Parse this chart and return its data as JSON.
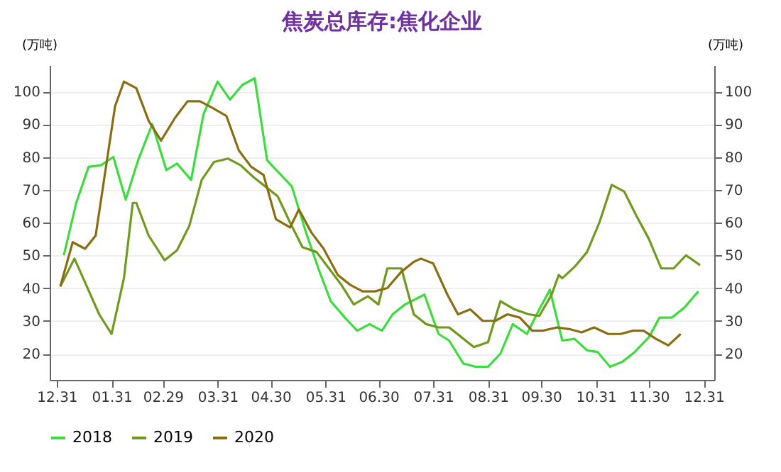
{
  "chart_data": {
    "type": "line",
    "title": "焦炭总库存:焦化企业",
    "ylabel": "(万吨)",
    "y2label": "(万吨)",
    "xlim": [
      "2019-12-27",
      "2021-01-06"
    ],
    "xticks": [
      {
        "value": "2019-12-31",
        "label": "12.31"
      },
      {
        "value": "2020-01-31",
        "label": "01.31"
      },
      {
        "value": "2020-02-29",
        "label": "02.29"
      },
      {
        "value": "2020-03-31",
        "label": "03.31"
      },
      {
        "value": "2020-04-30",
        "label": "04.30"
      },
      {
        "value": "2020-05-31",
        "label": "05.31"
      },
      {
        "value": "2020-06-30",
        "label": "06.30"
      },
      {
        "value": "2020-07-31",
        "label": "07.31"
      },
      {
        "value": "2020-08-31",
        "label": "08.31"
      },
      {
        "value": "2020-09-30",
        "label": "09.30"
      },
      {
        "value": "2020-10-31",
        "label": "10.31"
      },
      {
        "value": "2020-11-30",
        "label": "11.30"
      },
      {
        "value": "2020-12-31",
        "label": "12.31"
      }
    ],
    "ylim": [
      12,
      108
    ],
    "yticks": [
      20,
      30,
      40,
      50,
      60,
      70,
      80,
      90,
      100
    ],
    "y2lim": [
      12,
      108
    ],
    "y2ticks": [
      20,
      30,
      40,
      50,
      60,
      70,
      80,
      90,
      100
    ],
    "grid": "y",
    "legend": "bottom",
    "line_style": "solid",
    "marker": "none",
    "series": [
      {
        "name": "2018",
        "color": "#3ddc3d",
        "x": [
          "2020-01-04",
          "2020-01-11",
          "2020-01-18",
          "2020-01-25",
          "2020-02-01",
          "2020-02-08",
          "2020-02-15",
          "2020-02-23",
          "2020-03-02",
          "2020-03-08",
          "2020-03-16",
          "2020-03-23",
          "2020-03-31",
          "2020-04-07",
          "2020-04-14",
          "2020-04-21",
          "2020-04-28",
          "2020-05-05",
          "2020-05-12",
          "2020-05-20",
          "2020-05-27",
          "2020-06-03",
          "2020-06-11",
          "2020-06-18",
          "2020-06-25",
          "2020-07-02",
          "2020-07-08",
          "2020-07-15",
          "2020-07-26",
          "2020-08-03",
          "2020-08-09",
          "2020-08-17",
          "2020-08-24",
          "2020-08-31",
          "2020-09-07",
          "2020-09-14",
          "2020-09-22",
          "2020-09-29",
          "2020-10-05",
          "2020-10-12",
          "2020-10-19",
          "2020-10-26",
          "2020-11-01",
          "2020-11-08",
          "2020-11-15",
          "2020-11-22",
          "2020-11-30",
          "2020-12-06",
          "2020-12-13",
          "2020-12-20",
          "2020-12-28"
        ],
        "values": [
          50,
          66,
          77,
          77.5,
          80,
          67,
          79,
          90,
          76,
          78,
          73,
          93,
          103,
          97.5,
          102,
          104,
          79,
          75,
          71,
          57,
          46,
          36,
          31,
          27,
          29,
          27,
          32,
          35,
          38,
          26,
          24,
          17,
          16,
          16,
          20,
          29,
          26,
          33.5,
          39.5,
          24,
          24.5,
          21,
          20.5,
          16,
          17.5,
          20.5,
          25,
          31,
          31,
          34,
          39
        ]
      },
      {
        "name": "2019",
        "color": "#6f9a1e",
        "x": [
          "2020-01-02",
          "2020-01-10",
          "2020-01-17",
          "2020-01-24",
          "2020-01-31",
          "2020-02-07",
          "2020-02-12",
          "2020-02-14",
          "2020-02-21",
          "2020-03-01",
          "2020-03-08",
          "2020-03-15",
          "2020-03-22",
          "2020-03-29",
          "2020-04-06",
          "2020-04-13",
          "2020-04-20",
          "2020-04-27",
          "2020-05-04",
          "2020-05-11",
          "2020-05-18",
          "2020-05-26",
          "2020-06-02",
          "2020-06-09",
          "2020-06-16",
          "2020-06-24",
          "2020-06-30",
          "2020-07-05",
          "2020-07-13",
          "2020-07-20",
          "2020-07-27",
          "2020-08-03",
          "2020-08-09",
          "2020-08-16",
          "2020-08-23",
          "2020-08-31",
          "2020-09-07",
          "2020-09-15",
          "2020-09-23",
          "2020-09-29",
          "2020-10-06",
          "2020-10-10",
          "2020-10-12",
          "2020-10-19",
          "2020-10-26",
          "2020-11-02",
          "2020-11-09",
          "2020-11-16",
          "2020-11-23",
          "2020-11-30",
          "2020-12-07",
          "2020-12-14",
          "2020-12-21",
          "2020-12-29"
        ],
        "values": [
          40.5,
          49,
          40.5,
          32,
          26,
          43,
          66,
          66,
          56,
          48.5,
          51.5,
          59,
          73,
          78.5,
          79.5,
          77.5,
          74,
          71,
          68,
          60,
          52.5,
          51,
          46,
          41,
          35,
          37.5,
          35,
          46,
          46,
          32,
          29,
          28,
          28,
          25,
          22,
          23.5,
          36,
          33.5,
          32,
          31.5,
          38,
          44,
          43,
          46.5,
          51,
          60,
          71.5,
          69.5,
          62,
          55,
          46,
          46,
          50,
          47
        ]
      },
      {
        "name": "2020",
        "color": "#8a6d12",
        "x": [
          "2020-01-02",
          "2020-01-09",
          "2020-01-16",
          "2020-01-22",
          "2020-02-02",
          "2020-02-07",
          "2020-02-14",
          "2020-02-21",
          "2020-02-28",
          "2020-03-07",
          "2020-03-14",
          "2020-03-21",
          "2020-03-28",
          "2020-04-05",
          "2020-04-12",
          "2020-04-19",
          "2020-04-26",
          "2020-05-03",
          "2020-05-11",
          "2020-05-16",
          "2020-05-23",
          "2020-05-30",
          "2020-06-07",
          "2020-06-14",
          "2020-06-21",
          "2020-06-28",
          "2020-07-05",
          "2020-07-13",
          "2020-07-20",
          "2020-07-24",
          "2020-07-31",
          "2020-08-08",
          "2020-08-14",
          "2020-08-21",
          "2020-08-28",
          "2020-09-04",
          "2020-09-11",
          "2020-09-18",
          "2020-09-25",
          "2020-10-01",
          "2020-10-09",
          "2020-10-16",
          "2020-10-23",
          "2020-10-30",
          "2020-11-07",
          "2020-11-14",
          "2020-11-21",
          "2020-11-27",
          "2020-12-04",
          "2020-12-11",
          "2020-12-18"
        ],
        "values": [
          40.5,
          54,
          52,
          56,
          95.5,
          103,
          101,
          91,
          85,
          92,
          97,
          97,
          95,
          92.5,
          82,
          77,
          74.5,
          61,
          58.5,
          64,
          57,
          52,
          44,
          41,
          39,
          39,
          40,
          45,
          48,
          49,
          47.5,
          38,
          32,
          33.5,
          30,
          30,
          32,
          31,
          27,
          27,
          28,
          27.5,
          26.5,
          28,
          26,
          26,
          27,
          27,
          24.5,
          22.5,
          26
        ]
      }
    ]
  }
}
